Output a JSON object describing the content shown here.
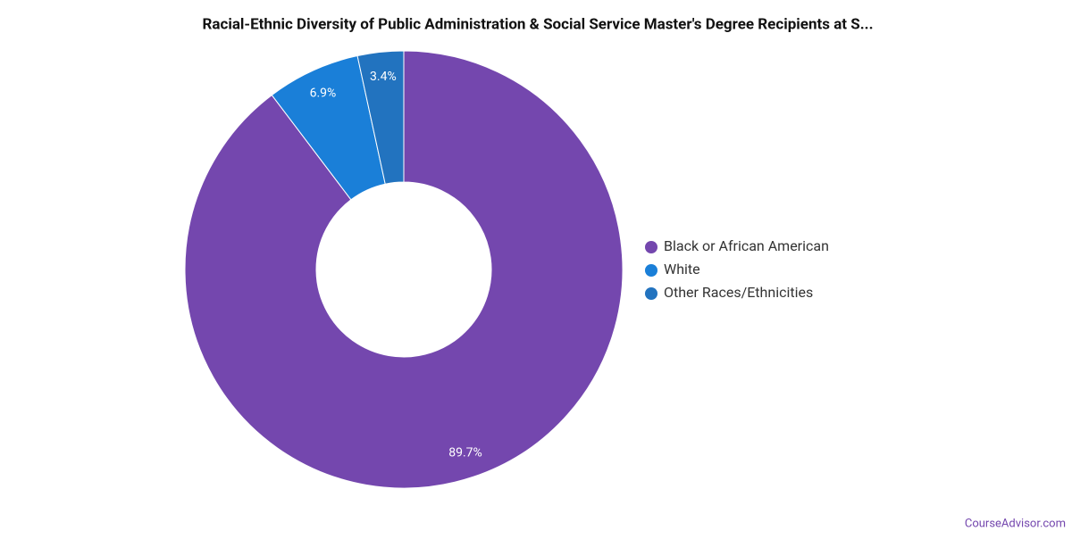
{
  "chart_data": {
    "type": "pie",
    "title": "Racial-Ethnic Diversity of Public Administration & Social Service Master's Degree Recipients at S...",
    "categories": [
      "Black or African American",
      "White",
      "Other Races/Ethnicities"
    ],
    "values": [
      89.7,
      6.9,
      3.4
    ],
    "value_labels": [
      "89.7%",
      "6.9%",
      "3.4%"
    ],
    "colors": [
      "#7447ae",
      "#1a7fd8",
      "#2273bf"
    ],
    "donut": true,
    "legend": "right"
  },
  "footer": "CourseAdvisor.com"
}
